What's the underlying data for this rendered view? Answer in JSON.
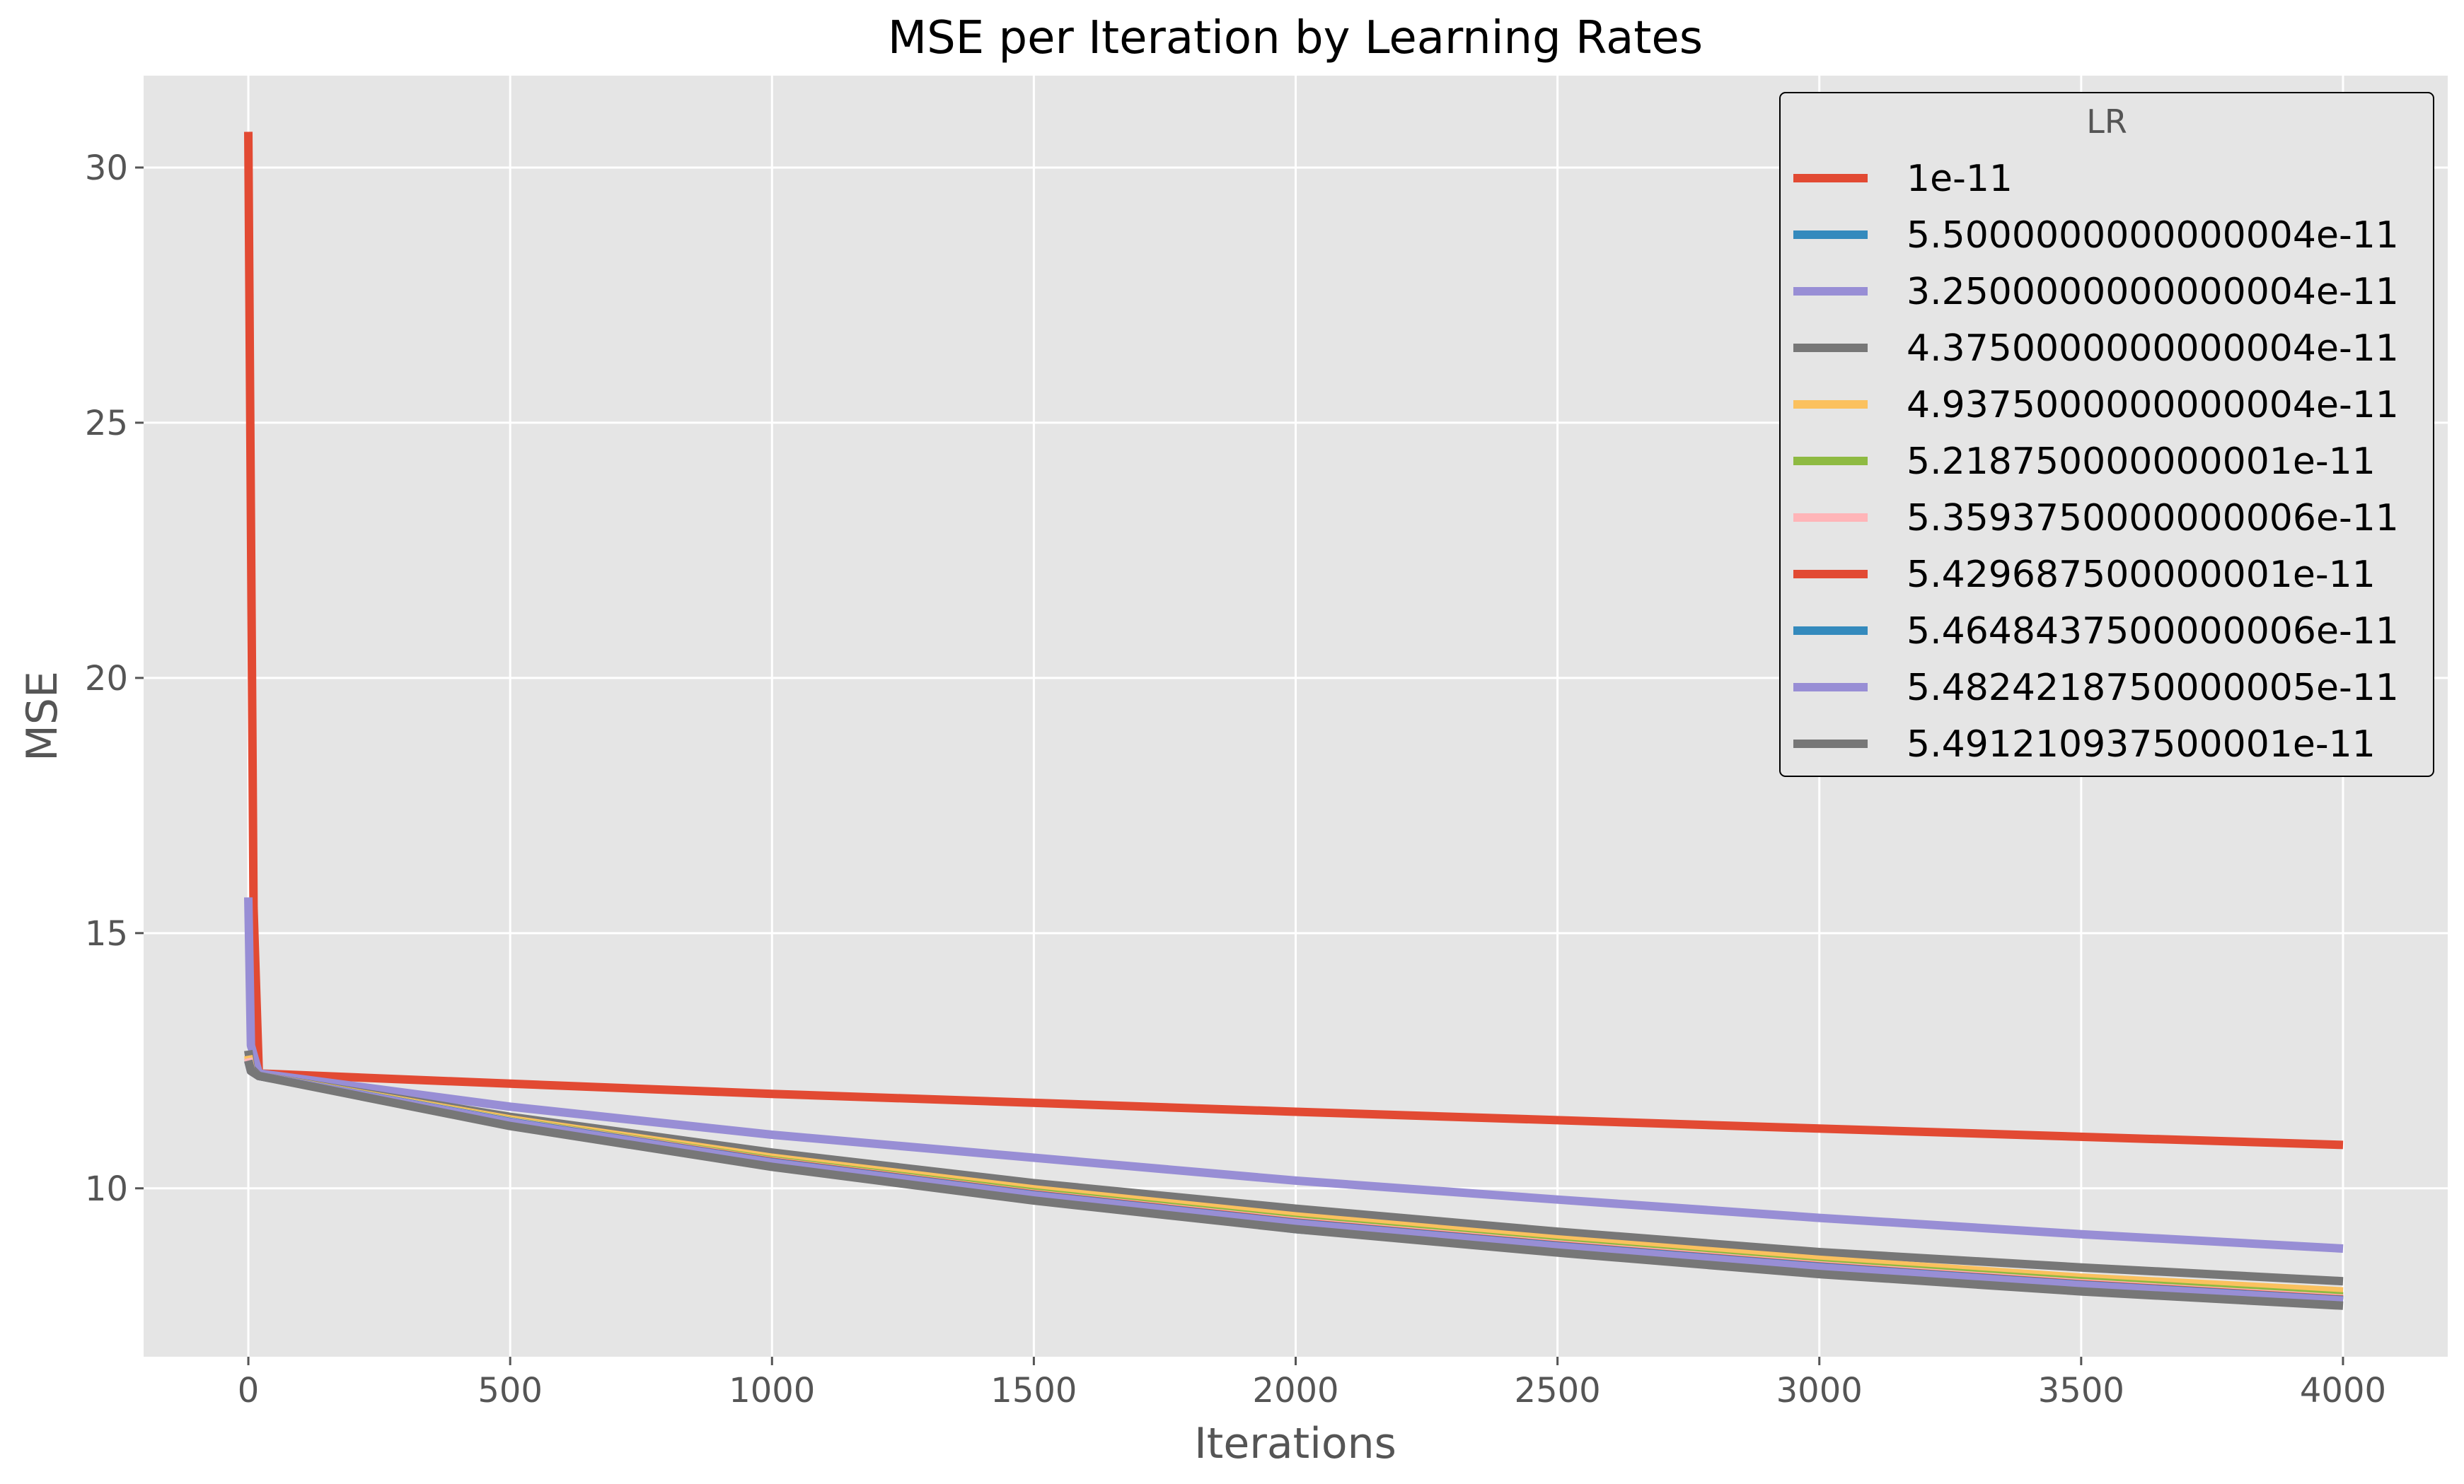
{
  "chart_data": {
    "type": "line",
    "title": "MSE per Iteration by Learning Rates",
    "xlabel": "Iterations",
    "ylabel": "MSE",
    "xlim": [
      -200,
      4200
    ],
    "ylim": [
      6.7,
      31.8
    ],
    "xticks": [
      0,
      500,
      1000,
      1500,
      2000,
      2500,
      3000,
      3500,
      4000
    ],
    "yticks": [
      10,
      15,
      20,
      25,
      30
    ],
    "grid": true,
    "legend": {
      "title": "LR",
      "placement": "top-right"
    },
    "colors": {
      "background": "#e5e5e5",
      "grid": "#ffffff",
      "text": "#555555",
      "title": "#000000",
      "legend_bg": "#e5e5e5",
      "legend_border": "#000000"
    },
    "series": [
      {
        "name": "1e-11",
        "color": "#e24a33",
        "x": [
          0,
          10,
          20,
          500,
          1000,
          2000,
          3000,
          4000
        ],
        "y": [
          30.7,
          15.5,
          12.25,
          12.05,
          11.85,
          11.5,
          11.17,
          10.85
        ]
      },
      {
        "name": "5.5000000000000004e-11",
        "color": "#348abd",
        "x": [
          0,
          5,
          20,
          500,
          1000,
          2000,
          3000,
          4000
        ],
        "y": [
          12.5,
          12.3,
          12.2,
          11.3,
          10.5,
          9.2,
          8.4,
          7.8
        ]
      },
      {
        "name": "3.2500000000000004e-11",
        "color": "#988ed5",
        "x": [
          0,
          5,
          20,
          500,
          1000,
          1500,
          2000,
          2500,
          3000,
          3500,
          4000
        ],
        "y": [
          15.7,
          12.8,
          12.25,
          11.6,
          11.05,
          10.6,
          10.15,
          9.78,
          9.42,
          9.1,
          8.82
        ]
      },
      {
        "name": "4.3750000000000004e-11",
        "color": "#777777",
        "x": [
          0,
          5,
          20,
          500,
          1000,
          1500,
          2000,
          2500,
          3000,
          3500,
          4000
        ],
        "y": [
          12.7,
          12.35,
          12.2,
          11.4,
          10.7,
          10.1,
          9.6,
          9.15,
          8.75,
          8.45,
          8.18
        ]
      },
      {
        "name": "4.9375000000000004e-11",
        "color": "#fbc15e",
        "x": [
          0,
          5,
          20,
          500,
          1000,
          1500,
          2000,
          2500,
          3000,
          3500,
          4000
        ],
        "y": [
          12.6,
          12.3,
          12.2,
          11.35,
          10.6,
          9.98,
          9.45,
          9.0,
          8.6,
          8.25,
          7.98
        ]
      },
      {
        "name": "5.218750000000001e-11",
        "color": "#8eba42",
        "x": [
          0,
          5,
          20,
          500,
          1000,
          1500,
          2000,
          2500,
          3000,
          3500,
          4000
        ],
        "y": [
          12.55,
          12.3,
          12.2,
          11.32,
          10.55,
          9.92,
          9.38,
          8.93,
          8.52,
          8.18,
          7.88
        ]
      },
      {
        "name": "5.3593750000000006e-11",
        "color": "#ffb5b8",
        "x": [
          0,
          5,
          20,
          500,
          1000,
          1500,
          2000,
          2500,
          3000,
          3500,
          4000
        ],
        "y": [
          12.55,
          12.3,
          12.2,
          11.31,
          10.53,
          9.89,
          9.35,
          8.9,
          8.49,
          8.14,
          7.84
        ]
      },
      {
        "name": "5.429687500000001e-11",
        "color": "#e24a33",
        "x": [
          0,
          5,
          20,
          500,
          1000,
          1500,
          2000,
          2500,
          3000,
          3500,
          4000
        ],
        "y": [
          12.5,
          12.3,
          12.2,
          11.3,
          10.52,
          9.88,
          9.33,
          8.88,
          8.47,
          8.12,
          7.82
        ]
      },
      {
        "name": "5.4648437500000006e-11",
        "color": "#348abd",
        "x": [
          0,
          5,
          20,
          500,
          1000,
          1500,
          2000,
          2500,
          3000,
          3500,
          4000
        ],
        "y": [
          12.5,
          12.3,
          12.2,
          11.3,
          10.51,
          9.87,
          9.32,
          8.87,
          8.46,
          8.11,
          7.81
        ]
      },
      {
        "name": "5.4824218750000005e-11",
        "color": "#988ed5",
        "x": [
          0,
          5,
          20,
          500,
          1000,
          1500,
          2000,
          2500,
          3000,
          3500,
          4000
        ],
        "y": [
          12.5,
          12.3,
          12.2,
          11.29,
          10.5,
          9.86,
          9.31,
          8.86,
          8.45,
          8.1,
          7.8
        ]
      },
      {
        "name": "5.491210937500001e-11",
        "color": "#777777",
        "x": [
          0,
          5,
          20,
          500,
          1000,
          1500,
          2000,
          2500,
          3000,
          3500,
          4000
        ],
        "y": [
          12.5,
          12.3,
          12.2,
          11.22,
          10.42,
          9.76,
          9.2,
          8.74,
          8.32,
          7.98,
          7.7
        ]
      }
    ]
  }
}
